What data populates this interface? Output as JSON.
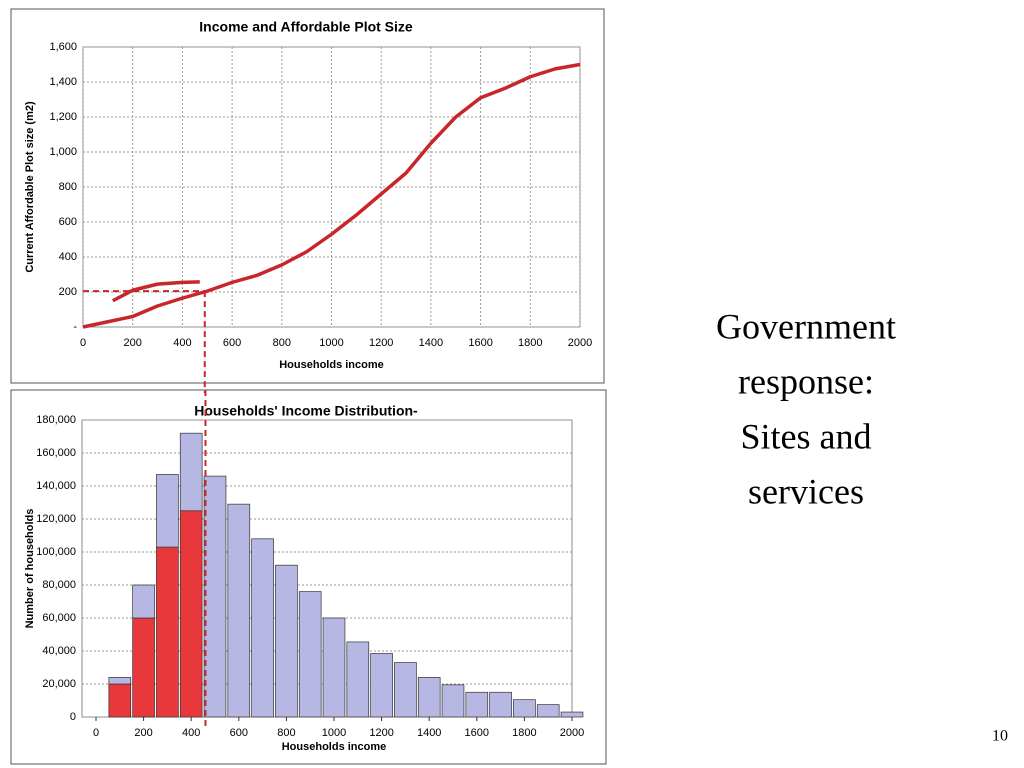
{
  "chart_data": [
    {
      "type": "line",
      "title": "Income and Affordable  Plot Size",
      "x_label": "Households income",
      "y_label": "Current Affordable Plot size (m2)",
      "series": [
        {
          "color": "#c8262b",
          "x": [
            0,
            100,
            200,
            300,
            400,
            500,
            600,
            700,
            800,
            900,
            1000,
            1100,
            1200,
            1300,
            1400,
            1500,
            1600,
            1700,
            1800,
            1900,
            2000
          ],
          "values": [
            0,
            30,
            60,
            120,
            165,
            205,
            255,
            295,
            355,
            430,
            530,
            640,
            760,
            880,
            1050,
            1200,
            1310,
            1365,
            1430,
            1475,
            1500
          ]
        },
        {
          "color": "#c8262b",
          "x": [
            120,
            200,
            300,
            400,
            470
          ],
          "values": [
            150,
            210,
            245,
            255,
            258
          ]
        }
      ],
      "reference_x": 490,
      "reference_y": 205,
      "xlim": [
        0,
        2000
      ],
      "xticks": [
        0,
        200,
        400,
        600,
        800,
        1000,
        1200,
        1400,
        1600,
        1800,
        2000
      ],
      "ylim": [
        0,
        1600
      ],
      "yticks": [
        {
          "value": 0,
          "label": "-"
        },
        200,
        400,
        600,
        800,
        {
          "value": 1000,
          "label": "1,000"
        },
        {
          "value": 1200,
          "label": "1,200"
        },
        {
          "value": 1400,
          "label": "1,400"
        },
        {
          "value": 1600,
          "label": "1,600"
        }
      ],
      "grid": true
    },
    {
      "type": "stacked_bar",
      "title": "Households' Income Distribution-",
      "x_label": "Households income",
      "y_label": "Number of households",
      "x": [
        100,
        200,
        300,
        400,
        500,
        600,
        700,
        800,
        900,
        1000,
        1100,
        1200,
        1300,
        1400,
        1500,
        1600,
        1700,
        1800,
        1900,
        2000
      ],
      "series": [
        {
          "color": "#e8383c",
          "values": [
            20000,
            60000,
            103000,
            125000,
            0,
            0,
            0,
            0,
            0,
            0,
            0,
            0,
            0,
            0,
            0,
            0,
            0,
            0,
            0,
            0
          ]
        },
        {
          "color": "#b7b7e3",
          "values": [
            4000,
            20000,
            44000,
            47000,
            146000,
            129000,
            108000,
            92000,
            76000,
            60000,
            45500,
            38500,
            33000,
            24000,
            19500,
            15000,
            15000,
            10500,
            7500,
            3000
          ]
        }
      ],
      "reference_x": 460,
      "xlim": [
        0,
        2000
      ],
      "xticks": [
        0,
        200,
        400,
        600,
        800,
        1000,
        1200,
        1400,
        1600,
        1800,
        2000
      ],
      "ylim": [
        0,
        180000
      ],
      "yticks": [
        0,
        {
          "value": 20000,
          "label": "20,000"
        },
        {
          "value": 40000,
          "label": "40,000"
        },
        {
          "value": 60000,
          "label": "60,000"
        },
        {
          "value": 80000,
          "label": "80,000"
        },
        {
          "value": 100000,
          "label": "100,000"
        },
        {
          "value": 120000,
          "label": "120,000"
        },
        {
          "value": 140000,
          "label": "140,000"
        },
        {
          "value": 160000,
          "label": "160,000"
        },
        {
          "value": 180000,
          "label": "180,000"
        }
      ],
      "grid": true
    }
  ],
  "slide": {
    "text": [
      "Government",
      "response:",
      "Sites and",
      "services"
    ],
    "page_number": "10"
  }
}
